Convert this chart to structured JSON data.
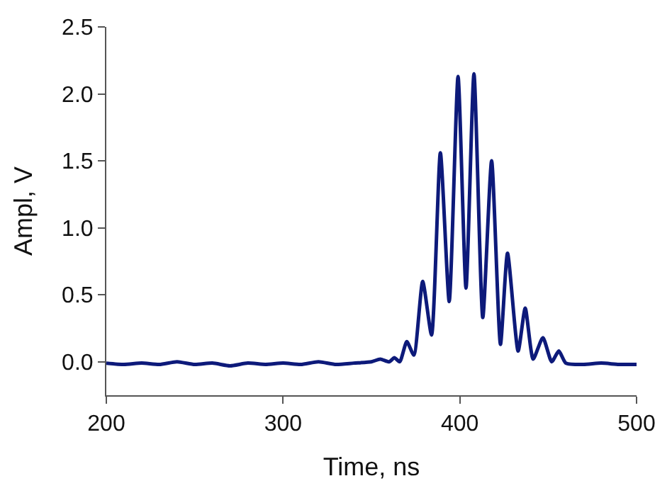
{
  "chart_data": {
    "type": "line",
    "xlabel": "Time, ns",
    "ylabel": "Ampl, V",
    "x": [
      200,
      210,
      220,
      230,
      240,
      250,
      260,
      270,
      280,
      290,
      300,
      310,
      320,
      330,
      340,
      350,
      355,
      360,
      363,
      366,
      370,
      374,
      379,
      384,
      389,
      394,
      399,
      403.5,
      408,
      413,
      418,
      423,
      427,
      433,
      437,
      441.5,
      447,
      452,
      456,
      460,
      470,
      480,
      490,
      500
    ],
    "series": [
      {
        "color": "#0d1a7a",
        "values": [
          -0.01,
          -0.02,
          -0.01,
          -0.02,
          0.0,
          -0.02,
          -0.01,
          -0.03,
          -0.01,
          -0.02,
          -0.01,
          -0.02,
          0.0,
          -0.02,
          -0.01,
          0.0,
          0.02,
          0.0,
          0.03,
          0.0,
          0.15,
          0.05,
          0.6,
          0.2,
          1.56,
          0.45,
          2.13,
          0.55,
          2.15,
          0.33,
          1.5,
          0.13,
          0.81,
          0.08,
          0.4,
          0.02,
          0.18,
          0.0,
          0.08,
          -0.01,
          -0.02,
          -0.01,
          -0.02,
          -0.02
        ]
      }
    ],
    "xlim": [
      200,
      500
    ],
    "xticks": [
      200,
      300,
      400,
      500
    ],
    "ylim": [
      -0.25,
      2.5
    ],
    "yticks": [
      {
        "value": 0,
        "label": "0.0"
      },
      0.5,
      {
        "value": 1,
        "label": "1.0"
      },
      1.5,
      {
        "value": 2,
        "label": "2.0"
      },
      2.5
    ],
    "legend": false,
    "marker": "none",
    "line_style": "solid"
  }
}
